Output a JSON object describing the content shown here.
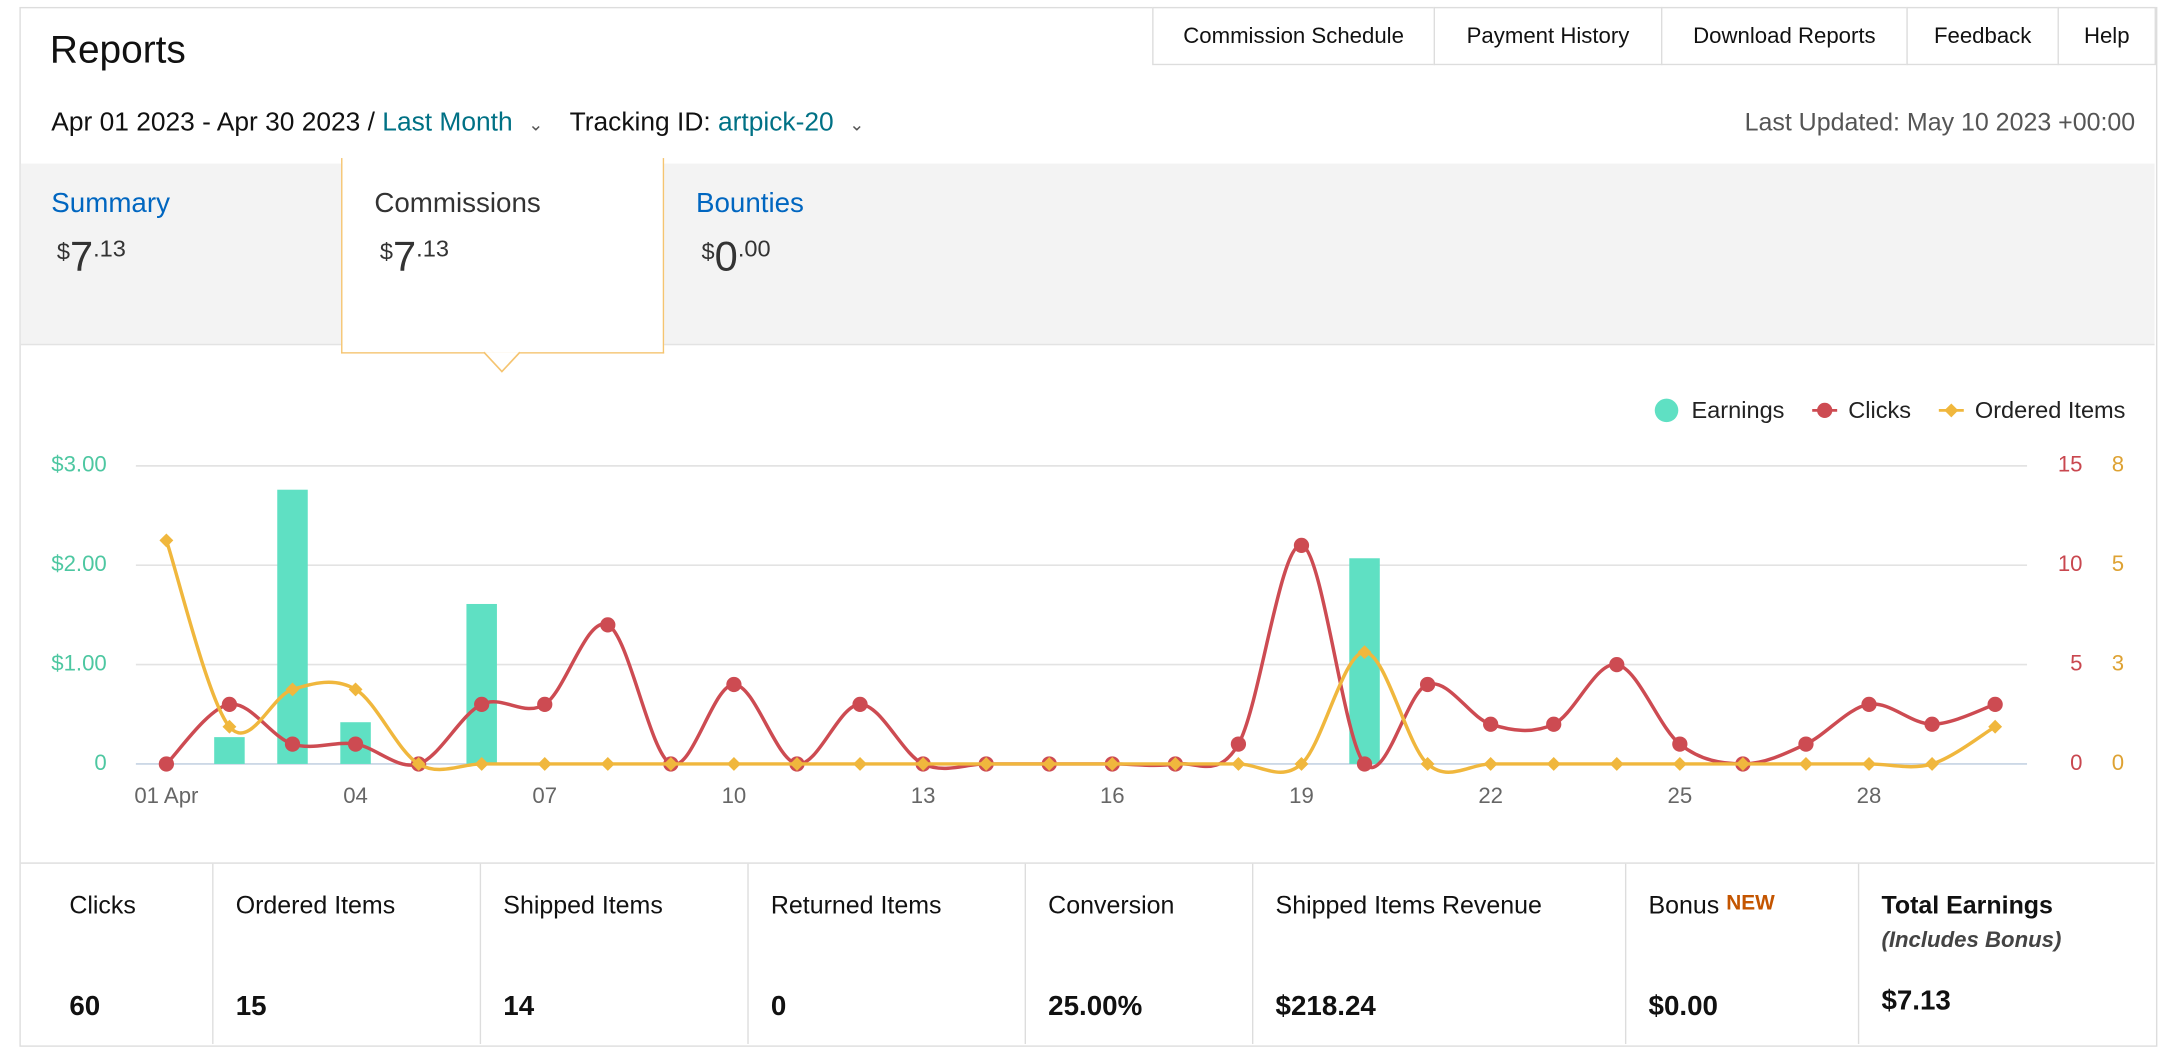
{
  "header": {
    "title": "Reports",
    "nav": [
      "Commission Schedule",
      "Payment History",
      "Download Reports",
      "Feedback",
      "Help"
    ],
    "date_range": "Apr 01 2023 - Apr 30 2023 /",
    "period": "Last Month",
    "tracking_label": "Tracking ID:",
    "tracking_id": "artpick-20",
    "last_updated": "Last Updated: May 10 2023 +00:00"
  },
  "tabs": [
    {
      "label": "Summary",
      "currency": "$",
      "whole": "7",
      "fraction": ".13"
    },
    {
      "label": "Commissions",
      "currency": "$",
      "whole": "7",
      "fraction": ".13"
    },
    {
      "label": "Bounties",
      "currency": "$",
      "whole": "0",
      "fraction": ".00"
    }
  ],
  "chart_data": {
    "type": "combo",
    "categories": [
      "01 Apr",
      null,
      null,
      "04",
      null,
      null,
      "07",
      null,
      null,
      "10",
      null,
      null,
      "13",
      null,
      null,
      "16",
      null,
      null,
      "19",
      null,
      null,
      "22",
      null,
      null,
      "25",
      null,
      null,
      "28",
      null,
      null
    ],
    "ylim": [
      0,
      3
    ],
    "yticks": [
      0,
      {
        "value": 1,
        "label": "$1.00"
      },
      {
        "value": 2,
        "label": "$2.00"
      },
      {
        "value": 3,
        "label": "$3.00"
      }
    ],
    "y2lim": [
      0,
      15
    ],
    "y2ticks": [
      0,
      5,
      10,
      15
    ],
    "y3lim": [
      0,
      8
    ],
    "y3ticks": [
      0,
      {
        "value": 2.6667,
        "label": "3"
      },
      {
        "value": 5.3333,
        "label": "5"
      },
      8
    ],
    "grid": true,
    "legend": "top-right",
    "series": [
      {
        "name": "Earnings",
        "type": "bar",
        "color": "#5fe0c3",
        "axis": "y",
        "values": [
          0,
          0.27,
          2.76,
          0.42,
          0,
          1.61,
          0,
          0,
          0,
          0,
          0,
          0,
          0,
          0,
          0,
          0,
          0,
          0,
          0,
          2.07,
          0,
          0,
          0,
          0,
          0,
          0,
          0,
          0,
          0,
          0
        ]
      },
      {
        "name": "Clicks",
        "type": "line",
        "marker": "circle",
        "color": "#cd4b52",
        "axis": "y2",
        "values": [
          0,
          3,
          1,
          1,
          0,
          3,
          3,
          7,
          0,
          4,
          0,
          3,
          0,
          0,
          0,
          0,
          0,
          1,
          11,
          0,
          4,
          2,
          2,
          5,
          1,
          0,
          1,
          3,
          2,
          3
        ]
      },
      {
        "name": "Ordered Items",
        "type": "line",
        "marker": "diamond",
        "color": "#f0b73d",
        "axis": "y3",
        "values": [
          6,
          1,
          2,
          2,
          0,
          0,
          0,
          0,
          0,
          0,
          0,
          0,
          0,
          0,
          0,
          0,
          0,
          0,
          0,
          3,
          0,
          0,
          0,
          0,
          0,
          0,
          0,
          0,
          0,
          1
        ]
      }
    ],
    "axis_colors": {
      "y": "#4dc7a1",
      "y2": "#c9474f",
      "y3": "#dea233"
    }
  },
  "stats": [
    {
      "label": "Clicks",
      "value": "60"
    },
    {
      "label": "Ordered Items",
      "value": "15"
    },
    {
      "label": "Shipped Items",
      "value": "14"
    },
    {
      "label": "Returned Items",
      "value": "0"
    },
    {
      "label": "Conversion",
      "value": "25.00%"
    },
    {
      "label": "Shipped Items Revenue",
      "value": "$218.24"
    },
    {
      "label": "Bonus",
      "badge": "NEW",
      "value": "$0.00"
    },
    {
      "label": "Total Earnings",
      "note": "(Includes Bonus)",
      "value": "$7.13"
    }
  ]
}
